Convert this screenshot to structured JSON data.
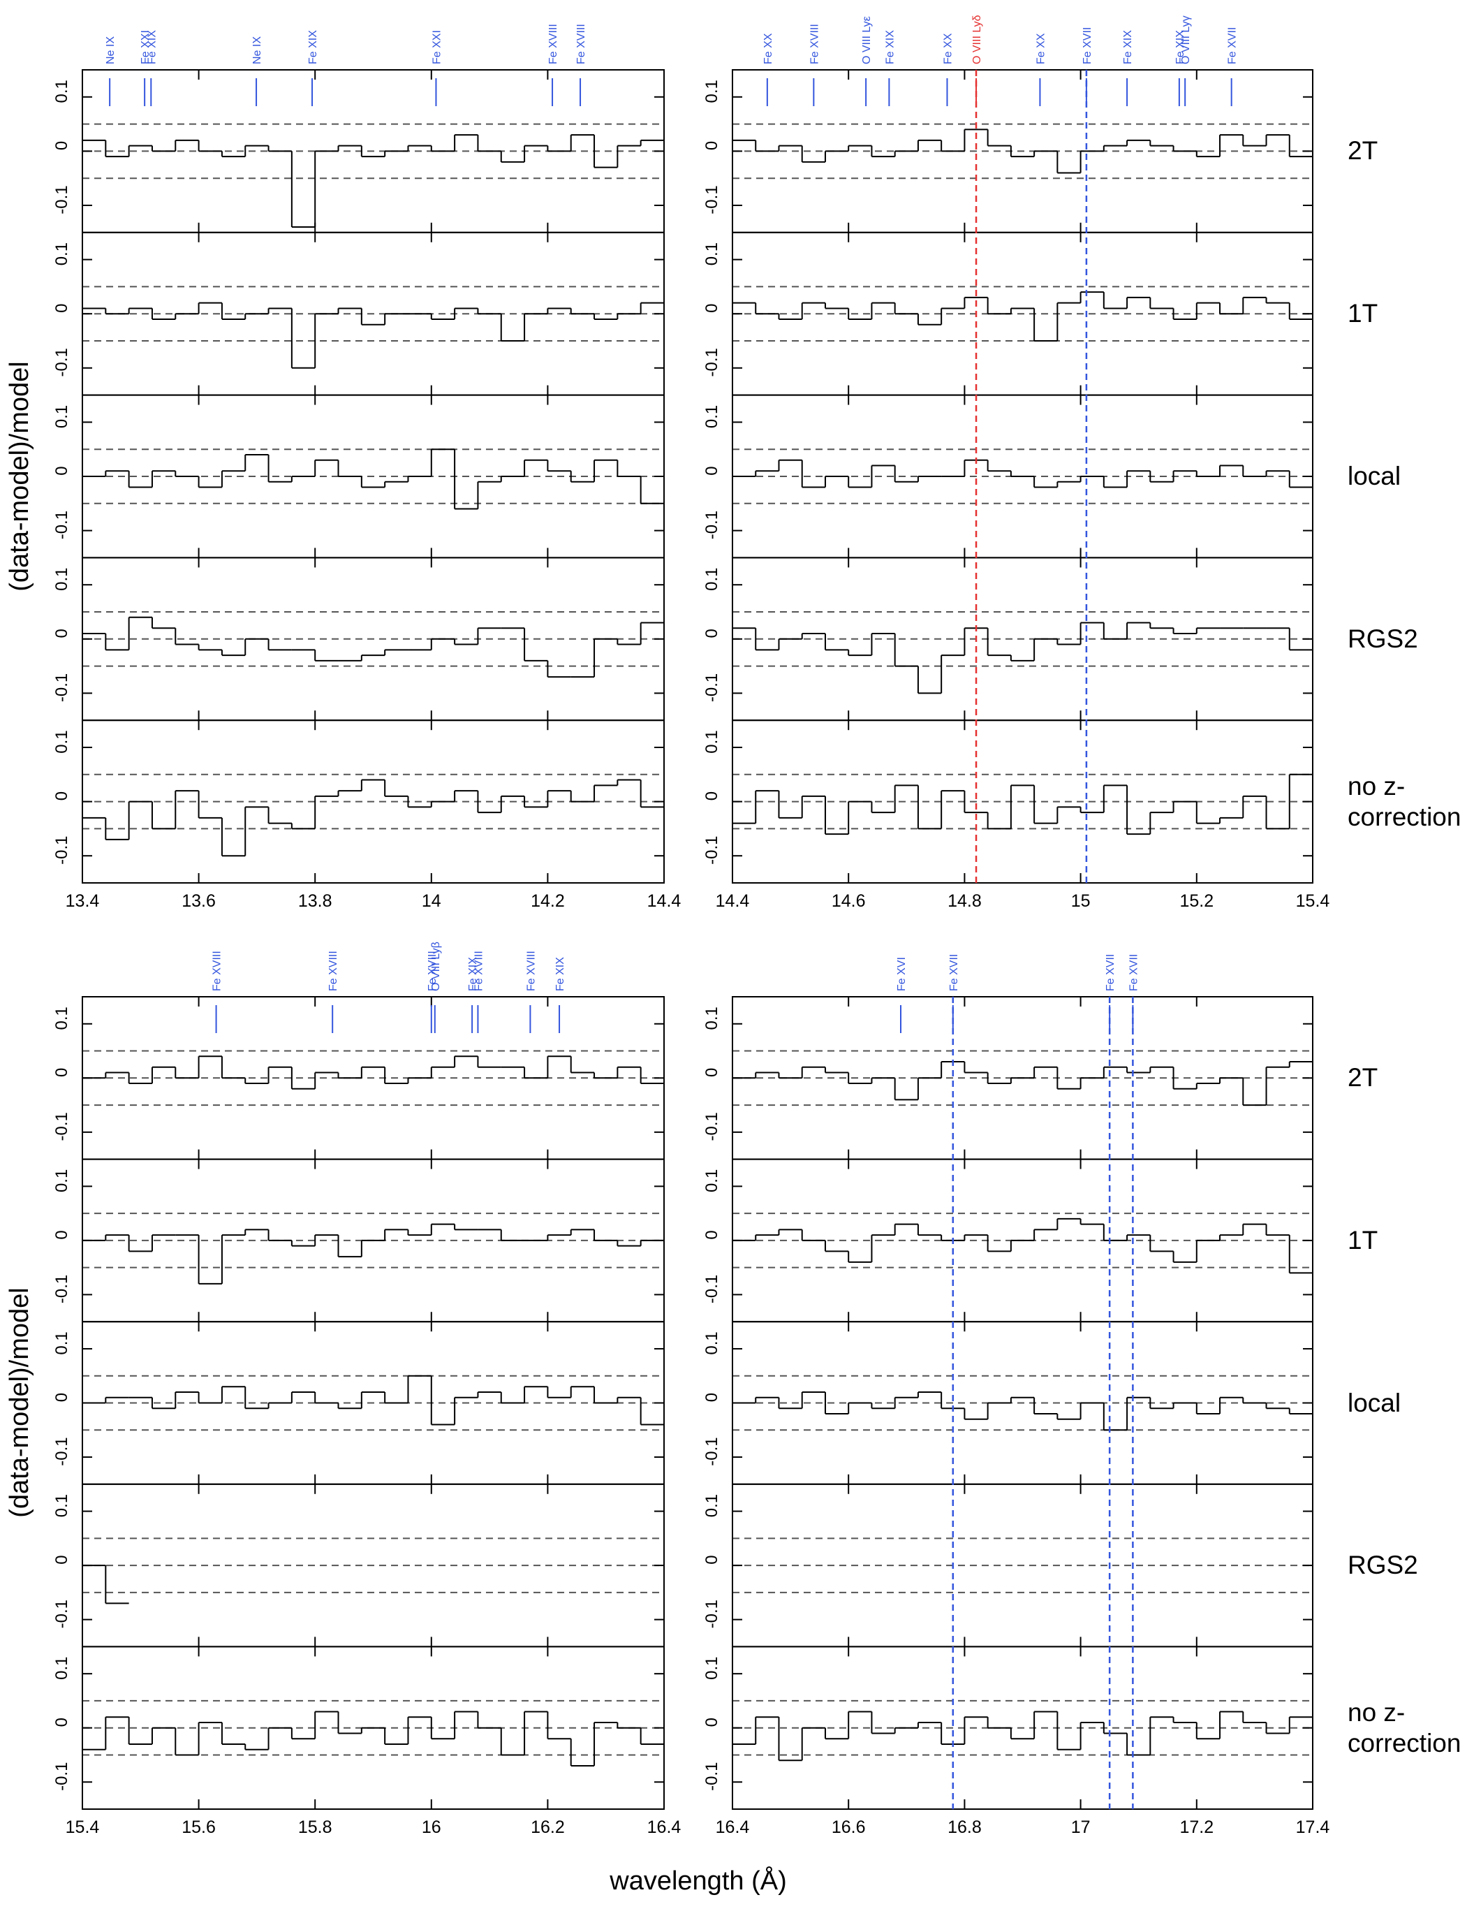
{
  "y_label": "(data-model)/model",
  "x_label": "wavelength (Å)",
  "chart_data": [
    {
      "type": "step",
      "xlim": [
        13.4,
        14.4
      ],
      "xticks": [
        13.4,
        13.6,
        13.8,
        14,
        14.2,
        14.4
      ],
      "ylim": [
        -0.15,
        0.15
      ],
      "yticks": [
        -0.1,
        0,
        0.1
      ],
      "hlines": [
        -0.05,
        0,
        0.05
      ],
      "line_color": "#000000",
      "hline_color": "#555555",
      "lines": [
        {
          "label": "Ne IX",
          "x": 13.447,
          "color": "#3355dd"
        },
        {
          "label": "Fe XXI",
          "x": 13.507,
          "color": "#3355dd"
        },
        {
          "label": "Fe XIX",
          "x": 13.518,
          "color": "#3355dd"
        },
        {
          "label": "Ne IX",
          "x": 13.699,
          "color": "#3355dd"
        },
        {
          "label": "Fe XIX",
          "x": 13.795,
          "color": "#3355dd"
        },
        {
          "label": "Fe XXI",
          "x": 14.008,
          "color": "#3355dd"
        },
        {
          "label": "Fe XVIII",
          "x": 14.208,
          "color": "#3355dd"
        },
        {
          "label": "Fe XVIII",
          "x": 14.256,
          "color": "#3355dd"
        }
      ],
      "vlines": [],
      "x": [
        13.42,
        13.46,
        13.5,
        13.54,
        13.58,
        13.62,
        13.66,
        13.7,
        13.74,
        13.78,
        13.82,
        13.86,
        13.9,
        13.94,
        13.98,
        14.02,
        14.06,
        14.1,
        14.14,
        14.18,
        14.22,
        14.26,
        14.3,
        14.34,
        14.38
      ],
      "series": [
        {
          "name": "2T",
          "values": [
            0.02,
            -0.01,
            0.01,
            0.0,
            0.02,
            0.0,
            -0.01,
            0.01,
            0.0,
            -0.14,
            0.0,
            0.01,
            -0.01,
            0.0,
            0.01,
            0.0,
            0.03,
            0.0,
            -0.02,
            0.01,
            0.0,
            0.03,
            -0.03,
            0.01,
            0.02
          ]
        },
        {
          "name": "1T",
          "values": [
            0.01,
            0.0,
            0.01,
            -0.01,
            0.0,
            0.02,
            -0.01,
            0.0,
            0.01,
            -0.1,
            0.0,
            0.01,
            -0.02,
            0.0,
            0.0,
            -0.01,
            0.01,
            0.0,
            -0.05,
            0.0,
            0.01,
            0.0,
            -0.01,
            0.0,
            0.02
          ]
        },
        {
          "name": "local",
          "values": [
            0.0,
            0.01,
            -0.02,
            0.01,
            0.0,
            -0.02,
            0.01,
            0.04,
            -0.01,
            0.0,
            0.03,
            0.0,
            -0.02,
            -0.01,
            0.0,
            0.05,
            -0.06,
            -0.01,
            0.0,
            0.03,
            0.01,
            -0.01,
            0.03,
            0.0,
            -0.05
          ]
        },
        {
          "name": "RGS2",
          "values": [
            0.01,
            -0.02,
            0.04,
            0.02,
            -0.01,
            -0.02,
            -0.03,
            0.0,
            -0.02,
            -0.02,
            -0.04,
            -0.04,
            -0.03,
            -0.02,
            -0.02,
            0.0,
            -0.01,
            0.02,
            0.02,
            -0.04,
            -0.07,
            -0.07,
            0.0,
            -0.01,
            0.03
          ]
        },
        {
          "name": "no z-correction",
          "values": [
            -0.03,
            -0.07,
            0.0,
            -0.05,
            0.02,
            -0.03,
            -0.1,
            -0.01,
            -0.04,
            -0.05,
            0.01,
            0.02,
            0.04,
            0.01,
            -0.01,
            0.0,
            0.02,
            -0.02,
            0.01,
            -0.01,
            0.02,
            0.0,
            0.03,
            0.04,
            -0.01
          ]
        }
      ]
    },
    {
      "type": "step",
      "xlim": [
        14.4,
        15.4
      ],
      "xticks": [
        14.4,
        14.6,
        14.8,
        15,
        15.2,
        15.4
      ],
      "ylim": [
        -0.15,
        0.15
      ],
      "yticks": [
        -0.1,
        0,
        0.1
      ],
      "hlines": [
        -0.05,
        0,
        0.05
      ],
      "line_color": "#000000",
      "hline_color": "#555555",
      "lines": [
        {
          "label": "Fe XX",
          "x": 14.46,
          "color": "#3355dd"
        },
        {
          "label": "Fe XVIII",
          "x": 14.54,
          "color": "#3355dd"
        },
        {
          "label": "O VIII Lyε",
          "x": 14.63,
          "color": "#3355dd"
        },
        {
          "label": "Fe XIX",
          "x": 14.67,
          "color": "#3355dd"
        },
        {
          "label": "Fe XX",
          "x": 14.77,
          "color": "#3355dd"
        },
        {
          "label": "O VIII Lyδ",
          "x": 14.82,
          "color": "#e53030"
        },
        {
          "label": "Fe XX",
          "x": 14.93,
          "color": "#3355dd"
        },
        {
          "label": "Fe XVII",
          "x": 15.01,
          "color": "#3355dd"
        },
        {
          "label": "Fe XIX",
          "x": 15.08,
          "color": "#3355dd"
        },
        {
          "label": "Fe XIX",
          "x": 15.17,
          "color": "#3355dd"
        },
        {
          "label": "O VIII Lyγ",
          "x": 15.18,
          "color": "#3355dd"
        },
        {
          "label": "Fe XVII",
          "x": 15.26,
          "color": "#3355dd"
        }
      ],
      "vlines": [
        {
          "x": 14.82,
          "color": "#e53030"
        },
        {
          "x": 15.01,
          "color": "#3355dd"
        }
      ],
      "x": [
        14.42,
        14.46,
        14.5,
        14.54,
        14.58,
        14.62,
        14.66,
        14.7,
        14.74,
        14.78,
        14.82,
        14.86,
        14.9,
        14.94,
        14.98,
        15.02,
        15.06,
        15.1,
        15.14,
        15.18,
        15.22,
        15.26,
        15.3,
        15.34,
        15.38
      ],
      "series": [
        {
          "name": "2T",
          "values": [
            0.02,
            0.0,
            0.01,
            -0.02,
            0.0,
            0.01,
            -0.01,
            0.0,
            0.02,
            0.0,
            0.04,
            0.01,
            -0.01,
            0.0,
            -0.04,
            0.0,
            0.01,
            0.02,
            0.01,
            0.0,
            -0.01,
            0.03,
            0.01,
            0.03,
            -0.01
          ]
        },
        {
          "name": "1T",
          "values": [
            0.02,
            0.0,
            -0.01,
            0.02,
            0.01,
            -0.01,
            0.02,
            0.0,
            -0.02,
            0.01,
            0.03,
            0.0,
            0.01,
            -0.05,
            0.02,
            0.04,
            0.01,
            0.03,
            0.01,
            -0.01,
            0.02,
            0.0,
            0.03,
            0.02,
            -0.01
          ]
        },
        {
          "name": "local",
          "values": [
            0.0,
            0.01,
            0.03,
            -0.02,
            0.0,
            -0.02,
            0.02,
            -0.01,
            0.0,
            0.0,
            0.03,
            0.01,
            0.0,
            -0.02,
            -0.01,
            0.0,
            -0.02,
            0.01,
            -0.01,
            0.01,
            0.0,
            0.02,
            0.0,
            0.01,
            -0.02
          ]
        },
        {
          "name": "RGS2",
          "values": [
            0.02,
            -0.02,
            0.0,
            0.01,
            -0.02,
            -0.03,
            0.01,
            -0.05,
            -0.1,
            -0.03,
            0.02,
            -0.03,
            -0.04,
            0.0,
            -0.01,
            0.03,
            0.0,
            0.03,
            0.02,
            0.01,
            0.02,
            0.02,
            0.02,
            0.02,
            -0.02
          ]
        },
        {
          "name": "no z-correction",
          "values": [
            -0.04,
            0.02,
            -0.03,
            0.01,
            -0.06,
            0.0,
            -0.02,
            0.03,
            -0.05,
            0.02,
            -0.02,
            -0.05,
            0.03,
            -0.04,
            -0.01,
            -0.02,
            0.03,
            -0.06,
            -0.02,
            0.0,
            -0.04,
            -0.03,
            0.01,
            -0.05,
            0.05
          ]
        }
      ]
    },
    {
      "type": "step",
      "xlim": [
        15.4,
        16.4
      ],
      "xticks": [
        15.4,
        15.6,
        15.8,
        16,
        16.2,
        16.4
      ],
      "ylim": [
        -0.15,
        0.15
      ],
      "yticks": [
        -0.1,
        0,
        0.1
      ],
      "hlines": [
        -0.05,
        0,
        0.05
      ],
      "line_color": "#000000",
      "hline_color": "#555555",
      "lines": [
        {
          "label": "Fe XVIII",
          "x": 15.63,
          "color": "#3355dd"
        },
        {
          "label": "Fe XVIII",
          "x": 15.83,
          "color": "#3355dd"
        },
        {
          "label": "Fe XVIII",
          "x": 16.0,
          "color": "#3355dd"
        },
        {
          "label": "O VIII Lyβ",
          "x": 16.006,
          "color": "#3355dd"
        },
        {
          "label": "Fe XIX",
          "x": 16.07,
          "color": "#3355dd"
        },
        {
          "label": "Fe XVIII",
          "x": 16.08,
          "color": "#3355dd"
        },
        {
          "label": "Fe XVIII",
          "x": 16.17,
          "color": "#3355dd"
        },
        {
          "label": "Fe XIX",
          "x": 16.22,
          "color": "#3355dd"
        }
      ],
      "vlines": [],
      "x": [
        15.42,
        15.46,
        15.5,
        15.54,
        15.58,
        15.62,
        15.66,
        15.7,
        15.74,
        15.78,
        15.82,
        15.86,
        15.9,
        15.94,
        15.98,
        16.02,
        16.06,
        16.1,
        16.14,
        16.18,
        16.22,
        16.26,
        16.3,
        16.34,
        16.38
      ],
      "series": [
        {
          "name": "2T",
          "values": [
            0.0,
            0.01,
            -0.01,
            0.02,
            0.0,
            0.04,
            0.0,
            -0.01,
            0.02,
            -0.02,
            0.01,
            0.0,
            0.02,
            -0.01,
            0.0,
            0.02,
            0.04,
            0.02,
            0.02,
            0.0,
            0.04,
            0.01,
            0.0,
            0.02,
            -0.01
          ]
        },
        {
          "name": "1T",
          "values": [
            0.0,
            0.01,
            -0.02,
            0.01,
            0.01,
            -0.08,
            0.01,
            0.02,
            0.0,
            -0.01,
            0.01,
            -0.03,
            0.0,
            0.02,
            0.01,
            0.03,
            0.02,
            0.02,
            0.0,
            0.0,
            0.01,
            0.02,
            0.0,
            -0.01,
            0.0
          ]
        },
        {
          "name": "local",
          "values": [
            0.0,
            0.01,
            0.01,
            -0.01,
            0.02,
            0.0,
            0.03,
            -0.01,
            0.0,
            0.02,
            0.0,
            -0.01,
            0.02,
            0.0,
            0.05,
            -0.04,
            0.01,
            0.02,
            0.0,
            0.03,
            0.01,
            0.03,
            0.0,
            0.01,
            -0.04
          ]
        },
        {
          "name": "RGS2",
          "values": [
            0.0,
            -0.07,
            null,
            null,
            null,
            null,
            null,
            null,
            null,
            null,
            null,
            null,
            null,
            null,
            null,
            null,
            null,
            null,
            null,
            null,
            null,
            null,
            null,
            null,
            null
          ]
        },
        {
          "name": "no z-correction",
          "values": [
            -0.04,
            0.02,
            -0.03,
            0.0,
            -0.05,
            0.01,
            -0.03,
            -0.04,
            0.0,
            -0.02,
            0.03,
            -0.01,
            0.0,
            -0.03,
            0.02,
            -0.02,
            0.03,
            0.0,
            -0.05,
            0.03,
            -0.02,
            -0.07,
            0.01,
            0.0,
            -0.03
          ]
        }
      ]
    },
    {
      "type": "step",
      "xlim": [
        16.4,
        17.4
      ],
      "xticks": [
        16.4,
        16.6,
        16.8,
        17,
        17.2,
        17.4
      ],
      "ylim": [
        -0.15,
        0.15
      ],
      "yticks": [
        -0.1,
        0,
        0.1
      ],
      "hlines": [
        -0.05,
        0,
        0.05
      ],
      "line_color": "#000000",
      "hline_color": "#555555",
      "lines": [
        {
          "label": "Fe XVI",
          "x": 16.69,
          "color": "#3355dd"
        },
        {
          "label": "Fe XVII",
          "x": 16.78,
          "color": "#3355dd"
        },
        {
          "label": "Fe XVII",
          "x": 17.05,
          "color": "#3355dd"
        },
        {
          "label": "Fe XVII",
          "x": 17.09,
          "color": "#3355dd"
        }
      ],
      "vlines": [
        {
          "x": 16.78,
          "color": "#3355dd"
        },
        {
          "x": 17.05,
          "color": "#3355dd"
        },
        {
          "x": 17.09,
          "color": "#3355dd"
        }
      ],
      "x": [
        16.42,
        16.46,
        16.5,
        16.54,
        16.58,
        16.62,
        16.66,
        16.7,
        16.74,
        16.78,
        16.82,
        16.86,
        16.9,
        16.94,
        16.98,
        17.02,
        17.06,
        17.1,
        17.14,
        17.18,
        17.22,
        17.26,
        17.3,
        17.34,
        17.38
      ],
      "series": [
        {
          "name": "2T",
          "values": [
            0.0,
            0.01,
            0.0,
            0.02,
            0.01,
            -0.01,
            0.0,
            -0.04,
            0.0,
            0.03,
            0.01,
            -0.01,
            0.0,
            0.02,
            -0.02,
            0.0,
            0.02,
            0.01,
            0.02,
            -0.02,
            -0.01,
            0.0,
            -0.05,
            0.02,
            0.03
          ]
        },
        {
          "name": "1T",
          "values": [
            0.0,
            0.01,
            0.02,
            0.0,
            -0.02,
            -0.04,
            0.01,
            0.03,
            0.01,
            0.0,
            0.01,
            -0.02,
            0.0,
            0.02,
            0.04,
            0.03,
            0.0,
            0.01,
            -0.02,
            -0.04,
            0.0,
            0.01,
            0.03,
            0.01,
            -0.06
          ]
        },
        {
          "name": "local",
          "values": [
            0.0,
            0.01,
            -0.01,
            0.02,
            -0.02,
            0.0,
            -0.01,
            0.01,
            0.02,
            -0.01,
            -0.03,
            0.0,
            0.01,
            -0.02,
            -0.03,
            0.0,
            -0.05,
            0.01,
            -0.01,
            0.0,
            -0.02,
            0.01,
            0.0,
            -0.01,
            -0.02
          ]
        },
        {
          "name": "RGS2",
          "values": [
            null,
            null,
            null,
            null,
            null,
            null,
            null,
            null,
            null,
            null,
            null,
            null,
            null,
            null,
            null,
            null,
            null,
            null,
            null,
            null,
            null,
            null,
            null,
            null,
            null
          ]
        },
        {
          "name": "no z-correction",
          "values": [
            -0.03,
            0.02,
            -0.06,
            0.0,
            -0.02,
            0.03,
            -0.01,
            0.0,
            0.01,
            -0.03,
            0.02,
            0.0,
            -0.02,
            0.03,
            -0.04,
            0.01,
            -0.01,
            -0.05,
            0.02,
            0.01,
            -0.02,
            0.03,
            0.01,
            -0.01,
            0.02
          ]
        }
      ]
    }
  ]
}
